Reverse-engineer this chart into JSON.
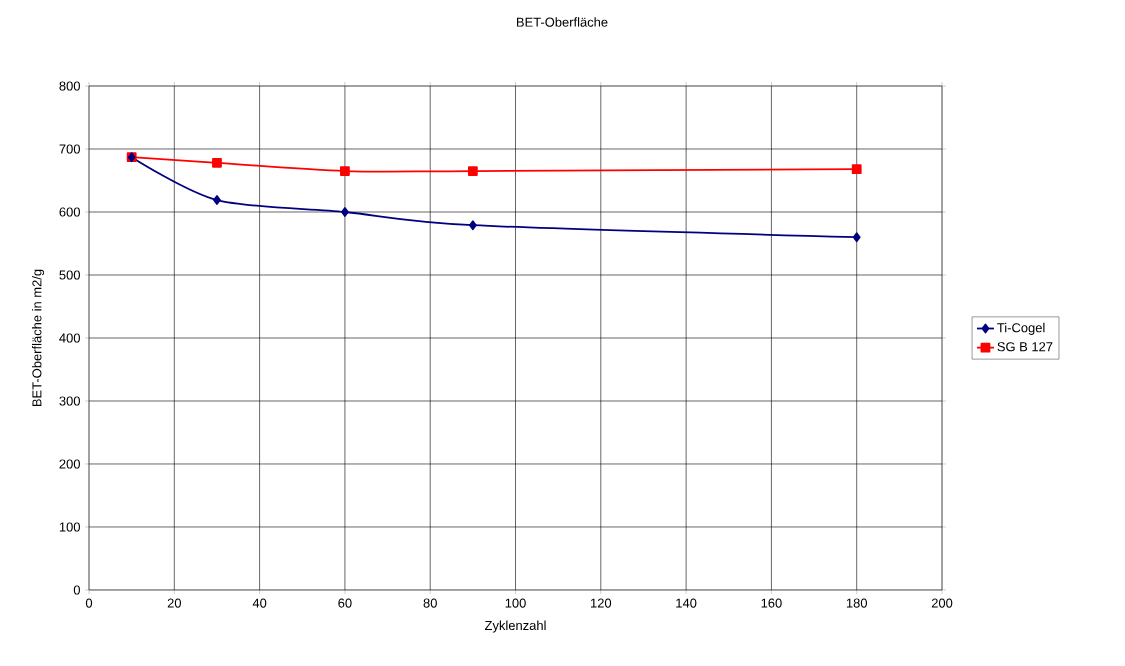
{
  "chart_data": {
    "type": "line",
    "title": "BET-Oberfläche",
    "xlabel": "Zyklenzahl",
    "ylabel": "BET-Oberfläche in m2/g",
    "x": [
      10,
      30,
      60,
      90,
      180
    ],
    "series": [
      {
        "name": "Ti-Cogel",
        "color": "#000080",
        "marker": "diamond",
        "values": [
          687,
          619,
          600,
          579,
          560
        ]
      },
      {
        "name": "SG B 127",
        "color": "#ff0000",
        "marker": "square",
        "values": [
          687,
          678,
          665,
          665,
          668
        ]
      }
    ],
    "xlim": [
      0,
      200
    ],
    "xticks": [
      0,
      20,
      40,
      60,
      80,
      100,
      120,
      140,
      160,
      180,
      200
    ],
    "ylim": [
      0,
      800
    ],
    "yticks": [
      0,
      100,
      200,
      300,
      400,
      500,
      600,
      700,
      800
    ],
    "grid": true,
    "legend": "right"
  }
}
